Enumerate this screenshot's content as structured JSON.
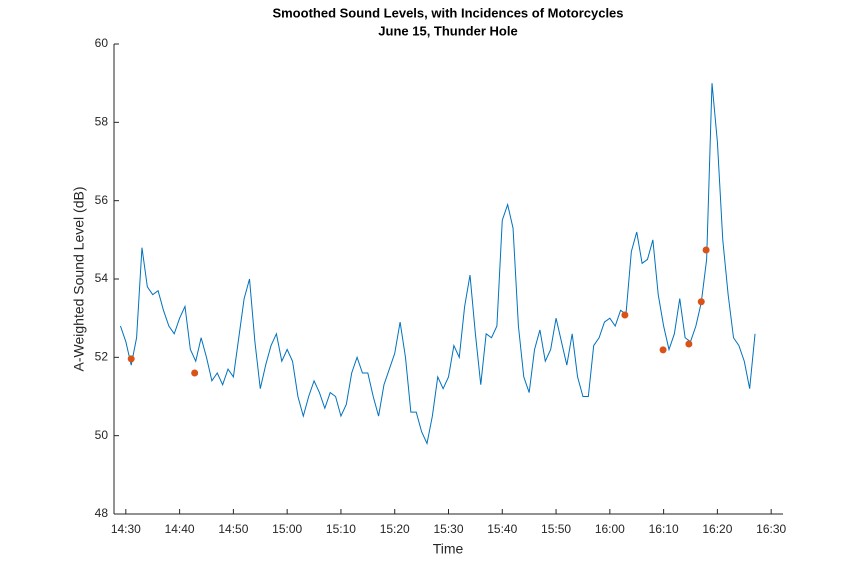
{
  "chart_data": {
    "type": "line",
    "title": "Smoothed Sound Levels, with Incidences of Motorcycles",
    "subtitle": "June 15, Thunder Hole",
    "xlabel": "Time",
    "ylabel": "A-Weighted Sound Level (dB)",
    "xlim": [
      867.8,
      992.2
    ],
    "ylim": [
      48,
      60
    ],
    "xticks": [
      {
        "value": 870,
        "label": "14:30"
      },
      {
        "value": 880,
        "label": "14:40"
      },
      {
        "value": 890,
        "label": "14:50"
      },
      {
        "value": 900,
        "label": "15:00"
      },
      {
        "value": 910,
        "label": "15:10"
      },
      {
        "value": 920,
        "label": "15:20"
      },
      {
        "value": 930,
        "label": "15:30"
      },
      {
        "value": 940,
        "label": "15:40"
      },
      {
        "value": 950,
        "label": "15:50"
      },
      {
        "value": 960,
        "label": "16:00"
      },
      {
        "value": 970,
        "label": "16:10"
      },
      {
        "value": 980,
        "label": "16:20"
      },
      {
        "value": 990,
        "label": "16:30"
      }
    ],
    "yticks": [
      48,
      50,
      52,
      54,
      56,
      58,
      60
    ],
    "color": "#0072bd",
    "x": [
      869,
      870,
      871,
      872,
      873,
      874,
      875,
      876,
      877,
      878,
      879,
      880,
      881,
      882,
      883,
      884,
      885,
      886,
      887,
      888,
      889,
      890,
      891,
      892,
      893,
      894,
      895,
      896,
      897,
      898,
      899,
      900,
      901,
      902,
      903,
      904,
      905,
      906,
      907,
      908,
      909,
      910,
      911,
      912,
      913,
      914,
      915,
      916,
      917,
      918,
      919,
      920,
      921,
      922,
      923,
      924,
      925,
      926,
      927,
      928,
      929,
      930,
      931,
      932,
      933,
      934,
      935,
      936,
      937,
      938,
      939,
      940,
      941,
      942,
      943,
      944,
      945,
      946,
      947,
      948,
      949,
      950,
      951,
      952,
      953,
      954,
      955,
      956,
      957,
      958,
      959,
      960,
      961,
      962,
      963,
      964,
      965,
      966,
      967,
      968,
      969,
      970,
      971,
      972,
      973,
      974,
      975,
      976,
      977,
      978,
      979,
      980,
      981,
      982,
      983,
      984,
      985,
      986,
      987
    ],
    "values": [
      52.8,
      52.4,
      51.8,
      52.5,
      54.8,
      53.8,
      53.6,
      53.7,
      53.2,
      52.8,
      52.6,
      53.0,
      53.3,
      52.2,
      51.9,
      52.5,
      52.0,
      51.4,
      51.6,
      51.3,
      51.7,
      51.5,
      52.5,
      53.5,
      54.0,
      52.4,
      51.2,
      51.8,
      52.3,
      52.6,
      51.9,
      52.2,
      51.9,
      51.0,
      50.5,
      51.0,
      51.4,
      51.1,
      50.7,
      51.1,
      51.0,
      50.5,
      50.8,
      51.6,
      52.0,
      51.6,
      51.6,
      51.0,
      50.5,
      51.3,
      51.7,
      52.1,
      52.9,
      52.0,
      50.6,
      50.6,
      50.1,
      49.8,
      50.5,
      51.5,
      51.2,
      51.5,
      52.3,
      52.0,
      53.3,
      54.1,
      52.6,
      51.3,
      52.6,
      52.5,
      52.8,
      55.5,
      55.9,
      55.3,
      52.8,
      51.5,
      51.1,
      52.2,
      52.7,
      51.9,
      52.2,
      53.0,
      52.4,
      51.8,
      52.6,
      51.5,
      51.0,
      51.0,
      52.3,
      52.5,
      52.9,
      53.0,
      52.8,
      53.2,
      53.1,
      54.7,
      55.2,
      54.4,
      54.5,
      55.0,
      53.6,
      52.8,
      52.2,
      52.6,
      53.5,
      52.5,
      52.4,
      52.8,
      53.4,
      54.5,
      59.0,
      57.5,
      55.0,
      53.6,
      52.5,
      52.3,
      51.9,
      51.2,
      52.6
    ],
    "markers": {
      "color": "#d95319",
      "x": [
        871,
        882.8,
        962.8,
        969.9,
        974.7,
        977,
        977.9
      ],
      "values": [
        51.96,
        51.6,
        53.08,
        52.19,
        52.34,
        53.42,
        54.74
      ]
    }
  }
}
